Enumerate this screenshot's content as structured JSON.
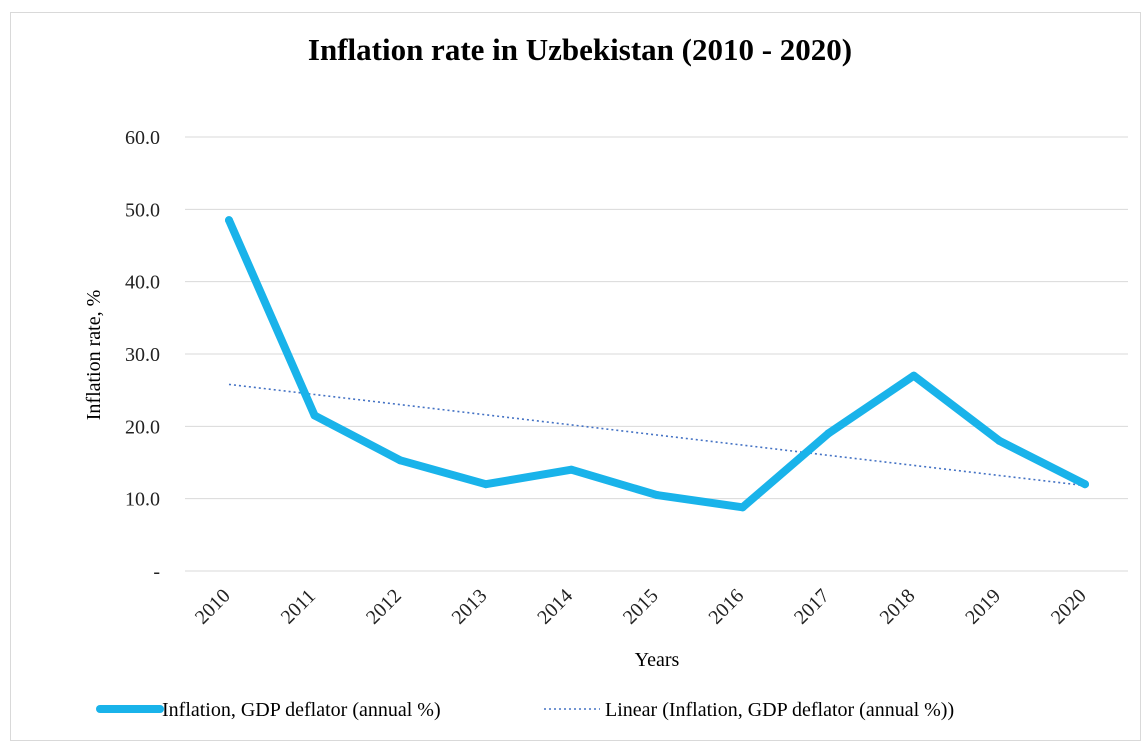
{
  "chart_data": {
    "type": "line",
    "title": "Inflation rate in Uzbekistan (2010 - 2020)",
    "xlabel": "Years",
    "ylabel": "Inflation  rate, %",
    "categories": [
      "2010",
      "2011",
      "2012",
      "2013",
      "2014",
      "2015",
      "2016",
      "2017",
      "2018",
      "2019",
      "2020"
    ],
    "yticks": [
      {
        "value": 0,
        "label": "-"
      },
      {
        "value": 10,
        "label": "10.0"
      },
      {
        "value": 20,
        "label": "20.0"
      },
      {
        "value": 30,
        "label": "30.0"
      },
      {
        "value": 40,
        "label": "40.0"
      },
      {
        "value": 50,
        "label": "50.0"
      },
      {
        "value": 60,
        "label": "60.0"
      }
    ],
    "ylim": [
      0,
      60
    ],
    "grid": "horizontal",
    "legend_position": "bottom",
    "series": [
      {
        "name": "Inflation, GDP deflator (annual %)",
        "values": [
          48.5,
          21.5,
          15.3,
          12.0,
          14.0,
          10.5,
          8.8,
          19.0,
          27.0,
          18.0,
          12.0
        ],
        "color": "#19b3ea",
        "style": "solid"
      },
      {
        "name": "Linear (Inflation, GDP deflator (annual %))",
        "values": [
          25.8,
          24.4,
          23.0,
          21.6,
          20.2,
          18.8,
          17.4,
          16.0,
          14.6,
          13.2,
          11.8
        ],
        "color": "#4472c4",
        "style": "dotted"
      }
    ]
  }
}
